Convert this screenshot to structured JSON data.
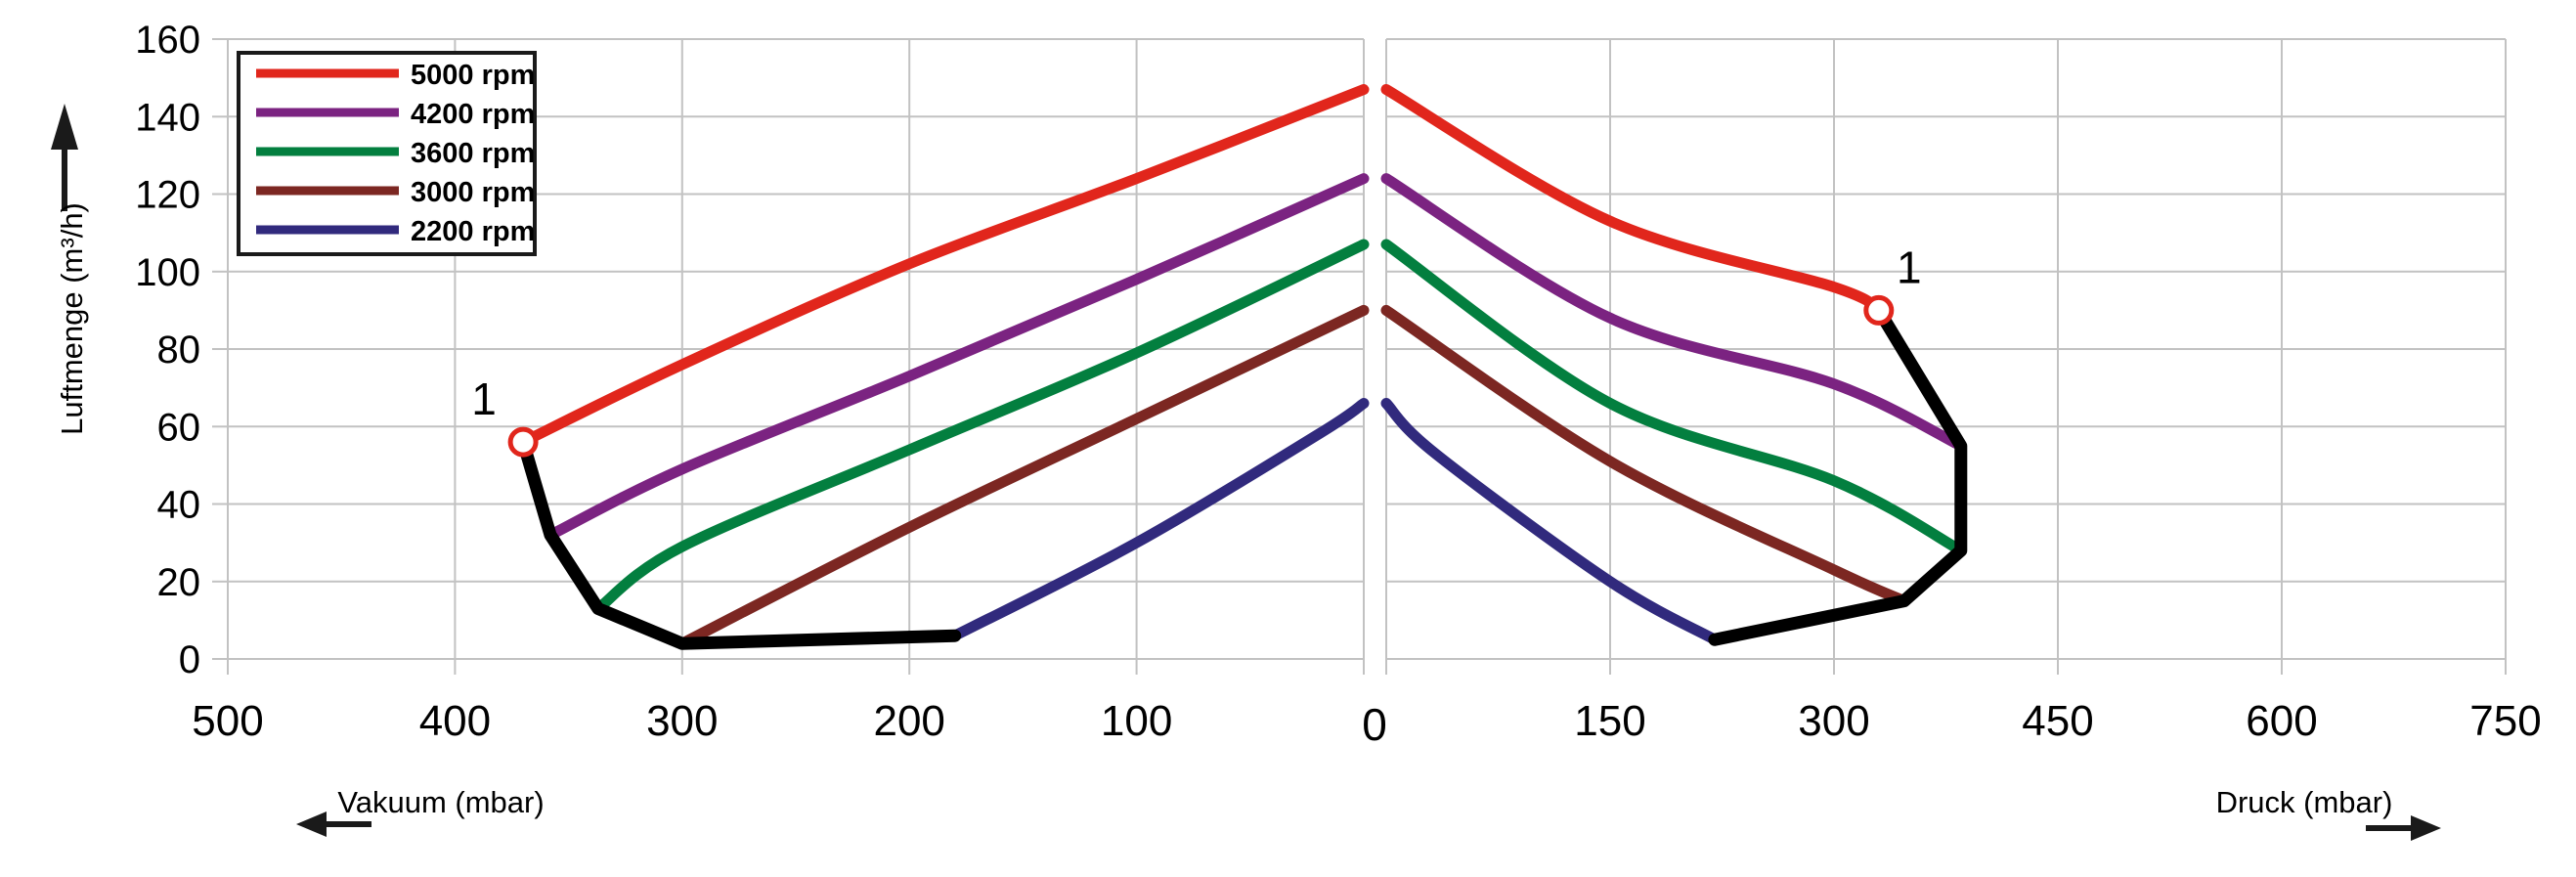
{
  "chart_data": {
    "type": "line",
    "title": "",
    "y_axis": {
      "label": "Luftmenge (m³/h)",
      "min": 0,
      "max": 160,
      "tick_step": 20,
      "tick_labels": [
        "0",
        "20",
        "40",
        "60",
        "80",
        "100",
        "120",
        "140",
        "160"
      ]
    },
    "x_axis_vacuum": {
      "caption": "Vakuum (mbar)",
      "direction": "values increase to the left",
      "max": 500,
      "tick_step": 100,
      "tick_labels": [
        "500",
        "400",
        "300",
        "200",
        "100"
      ]
    },
    "x_axis_druck": {
      "caption": "Druck (mbar)",
      "direction": "values increase to the right",
      "max": 750,
      "tick_step": 150,
      "tick_labels": [
        "150",
        "300",
        "450",
        "600",
        "750"
      ]
    },
    "origin_label": "0",
    "grid": true,
    "grid_color": "#c2c2c2",
    "text_color": "#000000",
    "marker_color": "#e1261c",
    "envelope_color": "#000000",
    "legend": {
      "position": "top-left",
      "items": [
        {
          "label": "5000 rpm",
          "color": "#e1261c"
        },
        {
          "label": "4200 rpm",
          "color": "#7b2381"
        },
        {
          "label": "3600 rpm",
          "color": "#037f3f"
        },
        {
          "label": "3000 rpm",
          "color": "#7c2722"
        },
        {
          "label": "2200 rpm",
          "color": "#312a7d"
        }
      ]
    },
    "series": [
      {
        "name": "5000 rpm",
        "rpm": 5000,
        "color": "#e1261c",
        "vacuum_points": [
          [
            0,
            147
          ],
          [
            100,
            124
          ],
          [
            200,
            102
          ],
          [
            300,
            76
          ],
          [
            370,
            56
          ]
        ],
        "druck_points": [
          [
            0,
            147
          ],
          [
            150,
            113
          ],
          [
            300,
            96
          ],
          [
            330,
            90
          ]
        ]
      },
      {
        "name": "4200 rpm",
        "rpm": 4200,
        "color": "#7b2381",
        "vacuum_points": [
          [
            0,
            124
          ],
          [
            100,
            98
          ],
          [
            200,
            73
          ],
          [
            300,
            49
          ],
          [
            358,
            32
          ]
        ],
        "druck_points": [
          [
            0,
            124
          ],
          [
            150,
            88
          ],
          [
            300,
            71
          ],
          [
            385,
            55
          ]
        ]
      },
      {
        "name": "3600 rpm",
        "rpm": 3600,
        "color": "#037f3f",
        "vacuum_points": [
          [
            0,
            107
          ],
          [
            100,
            79
          ],
          [
            200,
            54
          ],
          [
            300,
            29
          ],
          [
            337,
            13
          ]
        ],
        "druck_points": [
          [
            0,
            107
          ],
          [
            150,
            66
          ],
          [
            300,
            46
          ],
          [
            385,
            28
          ]
        ]
      },
      {
        "name": "3000 rpm",
        "rpm": 3000,
        "color": "#7c2722",
        "vacuum_points": [
          [
            0,
            90
          ],
          [
            100,
            62
          ],
          [
            200,
            34
          ],
          [
            300,
            4
          ]
        ],
        "druck_points": [
          [
            0,
            90
          ],
          [
            150,
            51
          ],
          [
            300,
            23
          ],
          [
            347,
            15
          ]
        ]
      },
      {
        "name": "2200 rpm",
        "rpm": 2200,
        "color": "#312a7d",
        "vacuum_points": [
          [
            0,
            66
          ],
          [
            20,
            58
          ],
          [
            100,
            30
          ],
          [
            180,
            6
          ]
        ],
        "druck_points": [
          [
            0,
            66
          ],
          [
            33,
            53
          ],
          [
            150,
            20
          ],
          [
            220,
            5
          ]
        ]
      }
    ],
    "envelope": {
      "vacuum_points": [
        [
          370,
          56
        ],
        [
          358,
          32
        ],
        [
          337,
          13
        ],
        [
          300,
          4
        ],
        [
          180,
          6
        ]
      ],
      "druck_points": [
        [
          330,
          90
        ],
        [
          385,
          55
        ],
        [
          385,
          28
        ],
        [
          347,
          15
        ],
        [
          220,
          5
        ]
      ]
    },
    "markers": [
      {
        "label": "1",
        "side": "vacuum",
        "mbar": 370,
        "value": 56
      },
      {
        "label": "1",
        "side": "druck",
        "mbar": 330,
        "value": 90
      }
    ]
  }
}
